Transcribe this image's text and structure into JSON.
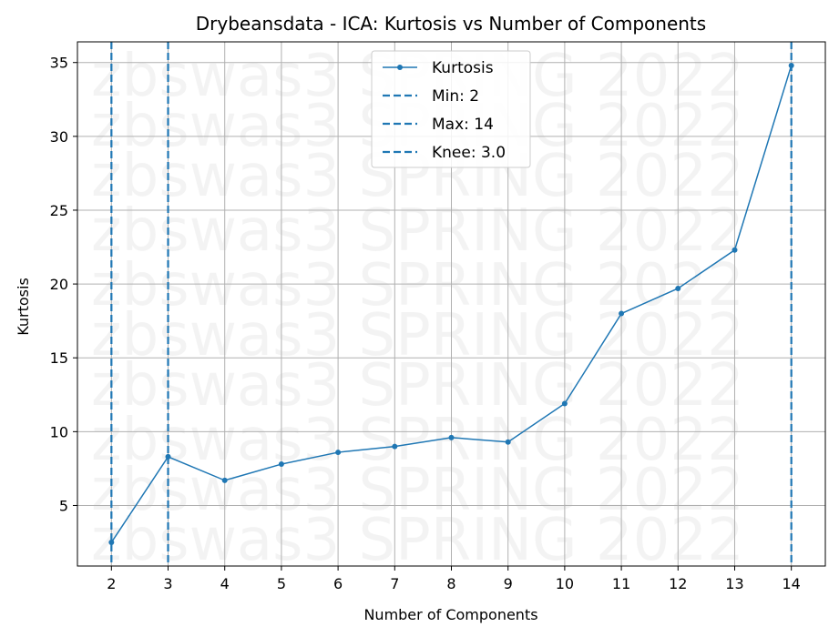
{
  "chart_data": {
    "type": "line",
    "title": "Drybeansdata - ICA: Kurtosis vs Number of Components",
    "xlabel": "Number of Components",
    "ylabel": "Kurtosis",
    "xlim": [
      1.4,
      14.6
    ],
    "ylim": [
      0.9,
      36.4
    ],
    "xticks": [
      2,
      3,
      4,
      5,
      6,
      7,
      8,
      9,
      10,
      11,
      12,
      13,
      14
    ],
    "yticks": [
      5,
      10,
      15,
      20,
      25,
      30,
      35
    ],
    "grid": true,
    "legend_position": "top-center",
    "series": [
      {
        "name": "Kurtosis",
        "color": "#1f77b4",
        "x": [
          2,
          3,
          4,
          5,
          6,
          7,
          8,
          9,
          10,
          11,
          12,
          13,
          14
        ],
        "y": [
          2.5,
          8.3,
          6.7,
          7.8,
          8.6,
          9.0,
          9.6,
          9.3,
          11.9,
          18.0,
          19.7,
          22.3,
          34.8
        ]
      }
    ],
    "vlines": [
      {
        "label": "Min: 2",
        "x": 2,
        "color": "#1f77b4",
        "style": "dashed"
      },
      {
        "label": "Max: 14",
        "x": 14,
        "color": "#1f77b4",
        "style": "dashed"
      },
      {
        "label": "Knee: 3.0",
        "x": 3,
        "color": "#1f77b4",
        "style": "dashed"
      }
    ],
    "watermark": "zbswas3 SPRING 2022"
  }
}
